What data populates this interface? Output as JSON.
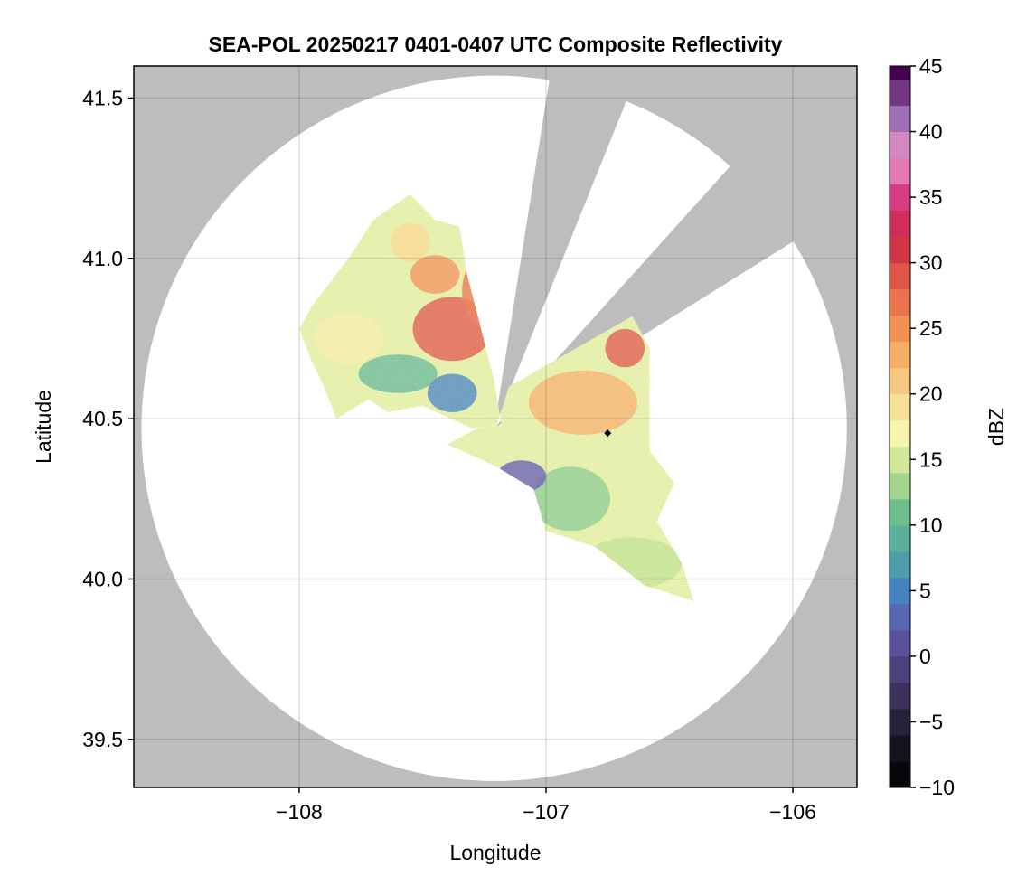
{
  "chart_data": {
    "type": "heatmap",
    "title": "SEA-POL 20250217 0401-0407 UTC Composite Reflectivity",
    "xlabel": "Longitude",
    "ylabel": "Latitude",
    "xlim": [
      -108.67,
      -105.74
    ],
    "ylim": [
      39.35,
      41.6
    ],
    "xticks": [
      -108,
      -107,
      -106
    ],
    "xtick_labels": [
      "−108",
      "−107",
      "−106"
    ],
    "yticks": [
      39.5,
      40.0,
      40.5,
      41.0,
      41.5
    ],
    "ytick_labels": [
      "39.5",
      "40.0",
      "40.5",
      "41.0",
      "41.5"
    ],
    "grid": true,
    "radar": {
      "center_lon": -107.21,
      "center_lat": 40.47,
      "range_deg_lat": 1.1,
      "blocked_sectors_deg_from_north": [
        [
          9,
          22
        ],
        [
          42,
          58
        ]
      ]
    },
    "marker": {
      "lon": -106.75,
      "lat": 40.455,
      "shape": "diamond"
    },
    "colorbar": {
      "label": "dBZ",
      "min": -10,
      "max": 45,
      "step": 2,
      "ticks": [
        -10,
        -5,
        0,
        5,
        10,
        15,
        20,
        25,
        30,
        35,
        40,
        45
      ],
      "tick_labels": [
        "−10",
        "−5",
        "0",
        "5",
        "10",
        "15",
        "20",
        "25",
        "30",
        "35",
        "40",
        "45"
      ],
      "colormap": "Spectral"
    },
    "colors": {
      "no_coverage": "#bdbdbd",
      "coverage_no_echo": "#ffffff",
      "marker": "#000000"
    }
  }
}
